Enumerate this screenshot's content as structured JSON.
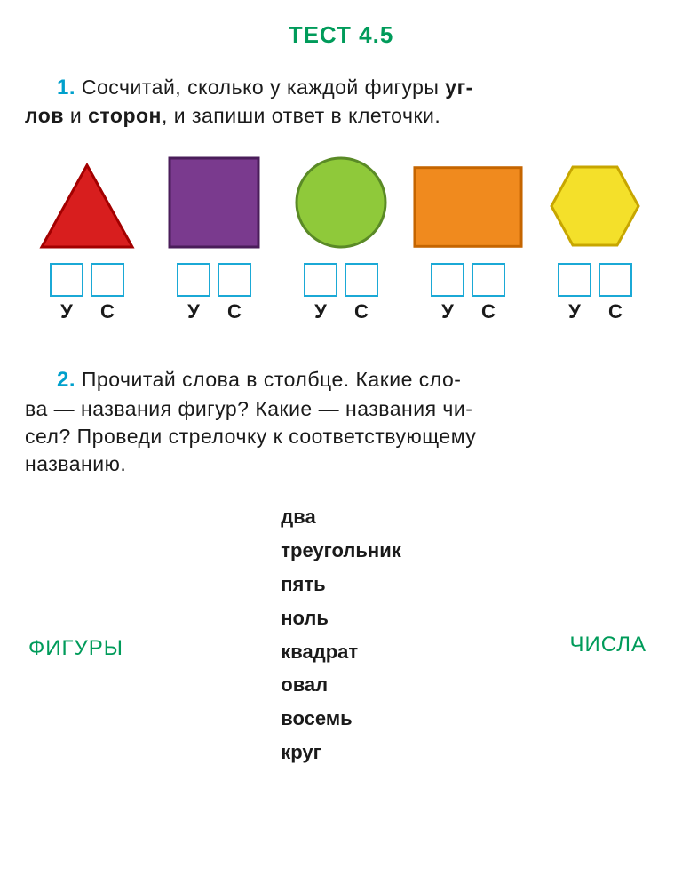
{
  "colors": {
    "title": "#009b5a",
    "task_number": "#00a0cc",
    "body_text": "#1a1a1a",
    "input_border": "#1ba9d6",
    "category_label": "#009b5a",
    "shapes": {
      "triangle_fill": "#d81e1e",
      "triangle_stroke": "#a30000",
      "square_fill": "#7a3a8e",
      "square_stroke": "#4a1d5a",
      "circle_fill": "#8fc93a",
      "circle_stroke": "#5a8a26",
      "rect_fill": "#f08a1e",
      "rect_stroke": "#c56500",
      "hex_fill": "#f4e02a",
      "hex_stroke": "#c7a600"
    }
  },
  "title": "ТЕСТ 4.5",
  "task1": {
    "number": "1.",
    "line1_a": " Сосчитай, сколько у каждой фигуры ",
    "bold1": "уг-",
    "line2_a": "лов",
    "line2_b": " и ",
    "bold2": "сторон",
    "line2_c": ", и запиши ответ в клеточки.",
    "labels": {
      "u": "У",
      "c": "С"
    },
    "shapes": [
      {
        "type": "triangle"
      },
      {
        "type": "square"
      },
      {
        "type": "circle"
      },
      {
        "type": "rectangle"
      },
      {
        "type": "hexagon"
      }
    ]
  },
  "task2": {
    "number": "2.",
    "line1": " Прочитай слова в столбце. Какие сло-",
    "line2": "ва — названия фигур? Какие — названия чи-",
    "line3": "сел? Проведи стрелочку к соответствующему",
    "line4": "названию.",
    "words": [
      "два",
      "треугольник",
      "пять",
      "ноль",
      "квадрат",
      "овал",
      "восемь",
      "круг"
    ],
    "category_left": "ФИГУРЫ",
    "category_right": "ЧИСЛА"
  }
}
